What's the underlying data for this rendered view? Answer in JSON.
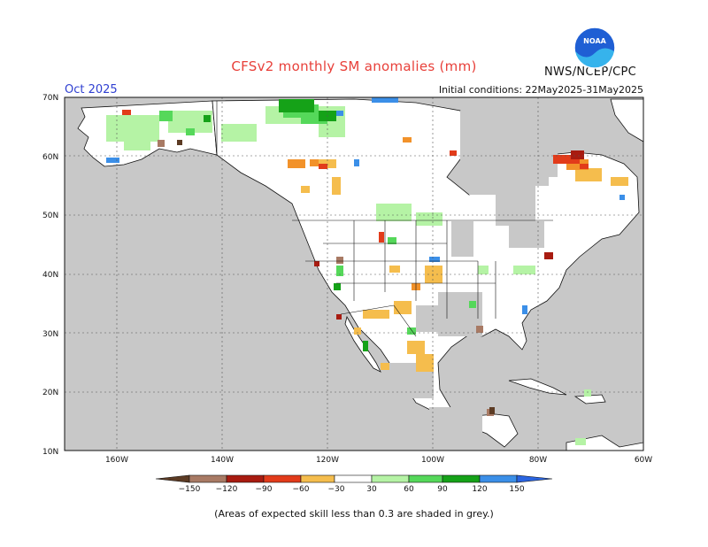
{
  "title": "CFSv2 monthly SM anomalies (mm)",
  "month": "Oct 2025",
  "agency": "NWS/NCEP/CPC",
  "logo_text": "NOAA",
  "initial_conditions": "Initial conditions: 22May2025-31May2025",
  "footnote": "(Areas of expected skill less than 0.3 are shaded in grey.)",
  "lat_labels": [
    "70N",
    "60N",
    "50N",
    "40N",
    "30N",
    "20N",
    "10N"
  ],
  "lon_labels": [
    "160W",
    "140W",
    "120W",
    "100W",
    "80W",
    "60W"
  ],
  "legend": {
    "ticks": [
      "−150",
      "−120",
      "−90",
      "−60",
      "−30",
      "30",
      "60",
      "90",
      "120",
      "150"
    ],
    "colors": [
      "#5c3b24",
      "#a87a64",
      "#a81b10",
      "#e23b1a",
      "#f2922a",
      "#f5bd4d",
      "#ffffff",
      "#b5f3a5",
      "#55d85a",
      "#15a218",
      "#3b8fe8",
      "#2a64e0"
    ]
  },
  "colors": {
    "grey_mask": "#c8c8c8",
    "land": "#ffffff",
    "coast": "#111111"
  }
}
